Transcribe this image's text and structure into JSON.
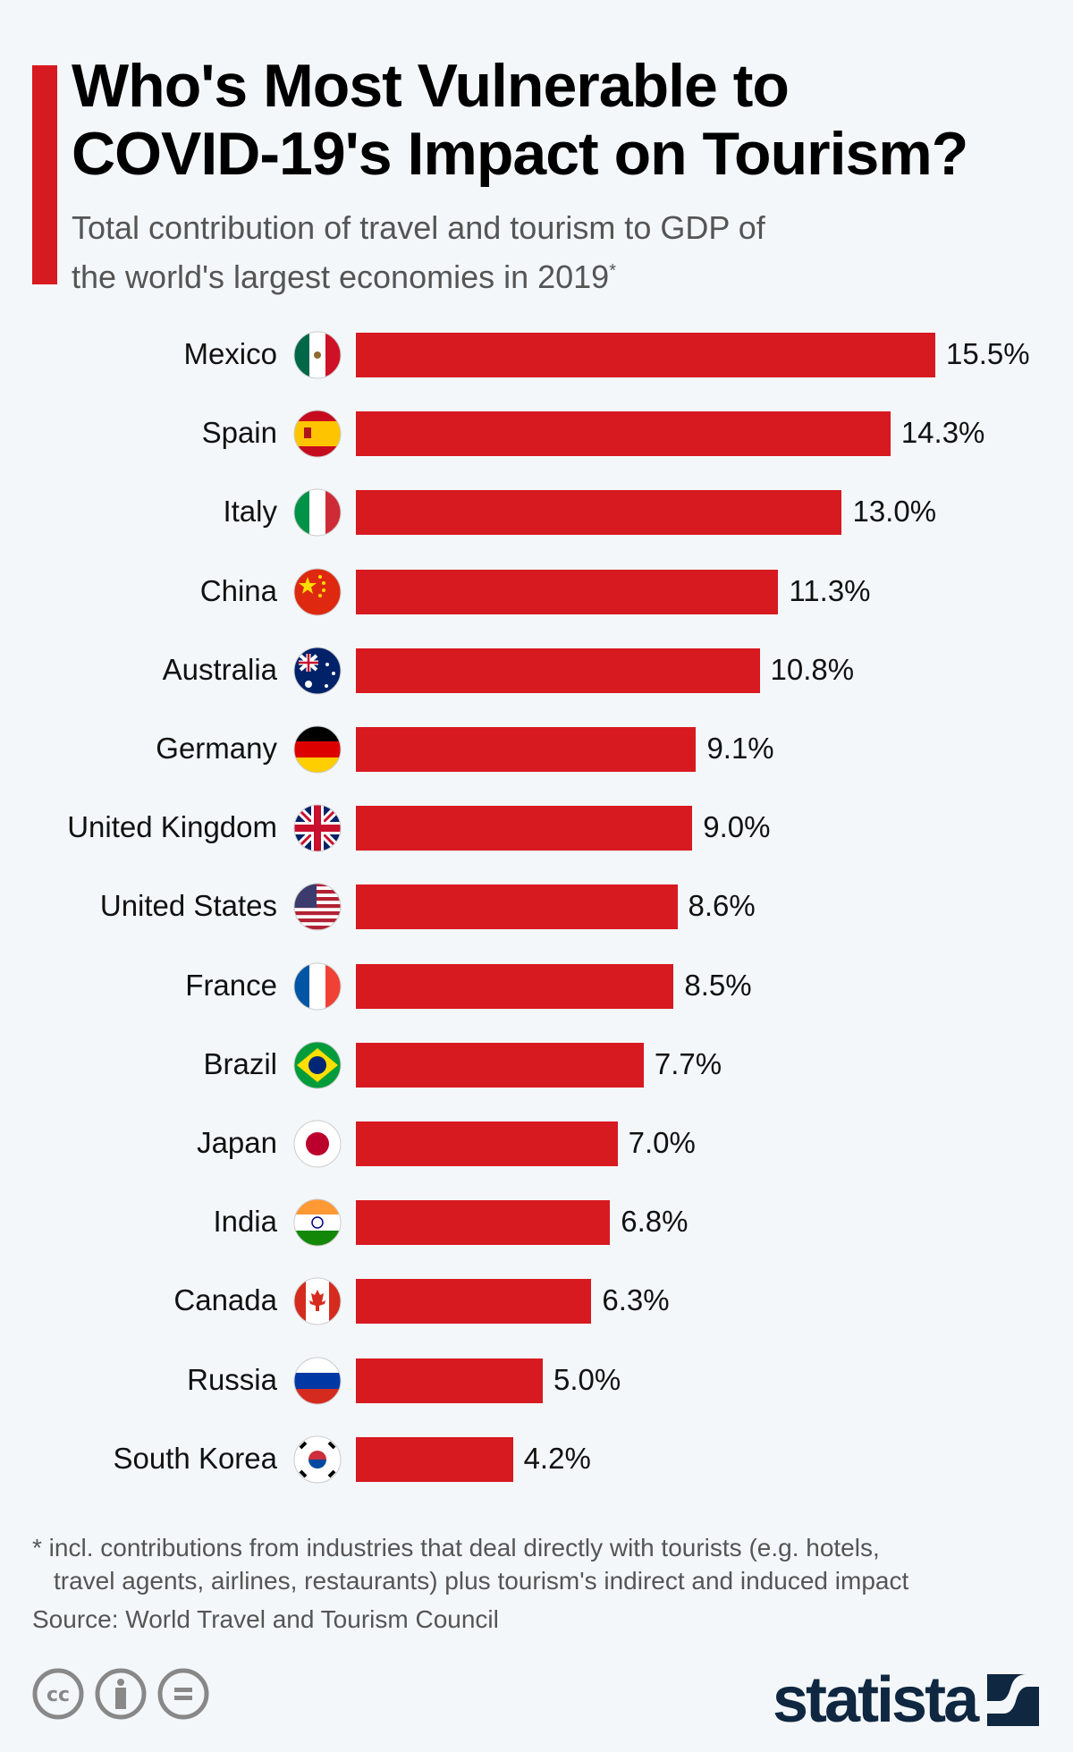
{
  "title_line1": "Who's Most Vulnerable to",
  "title_line2": "COVID-19's Impact on Tourism?",
  "subtitle_line1": "Total contribution of travel and tourism to GDP of",
  "subtitle_line2": "the world's largest economies in 2019",
  "subtitle_mark": "*",
  "colors": {
    "accent": "#d71920",
    "bar": "#d71920",
    "logo": "#0f2740",
    "background": "#f4f7fa"
  },
  "chart_data": {
    "type": "bar",
    "orientation": "horizontal",
    "title": "Who's Most Vulnerable to COVID-19's Impact on Tourism?",
    "categories": [
      "Mexico",
      "Spain",
      "Italy",
      "China",
      "Australia",
      "Germany",
      "United Kingdom",
      "United States",
      "France",
      "Brazil",
      "Japan",
      "India",
      "Canada",
      "Russia",
      "South Korea"
    ],
    "values": [
      15.5,
      14.3,
      13.0,
      11.3,
      10.8,
      9.1,
      9.0,
      8.6,
      8.5,
      7.7,
      7.0,
      6.8,
      6.3,
      5.0,
      4.2
    ],
    "value_labels": [
      "15.5%",
      "14.3%",
      "13.0%",
      "11.3%",
      "10.8%",
      "9.1%",
      "9.0%",
      "8.6%",
      "8.5%",
      "7.7%",
      "7.0%",
      "6.8%",
      "6.3%",
      "5.0%",
      "4.2%"
    ],
    "flags": [
      "mexico-flag",
      "spain-flag",
      "italy-flag",
      "china-flag",
      "australia-flag",
      "germany-flag",
      "uk-flag",
      "us-flag",
      "france-flag",
      "brazil-flag",
      "japan-flag",
      "india-flag",
      "canada-flag",
      "russia-flag",
      "south-korea-flag"
    ],
    "unit": "%",
    "grid": false
  },
  "footnote_line1": "* incl. contributions from industries that deal directly with tourists (e.g. hotels,",
  "footnote_line2": "travel agents, airlines, restaurants) plus tourism's indirect and induced impact",
  "source": "Source: World Travel and Tourism Council",
  "license_icons": [
    "cc-icon",
    "attribution-icon",
    "no-derivatives-icon"
  ],
  "logo": "statista"
}
